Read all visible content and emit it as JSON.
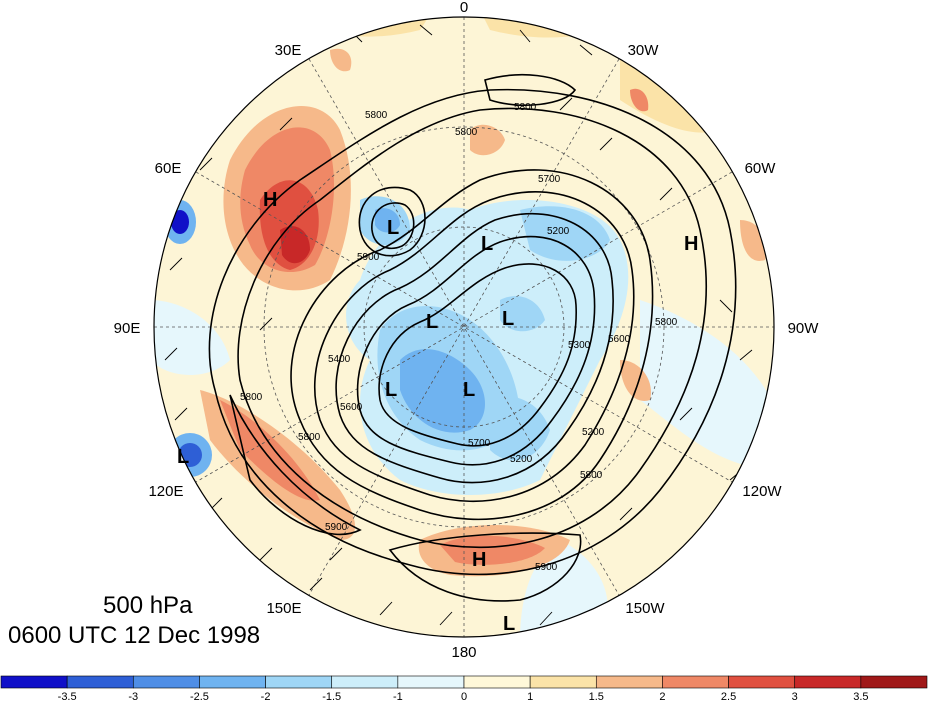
{
  "title": {
    "level": "500 hPa",
    "time": "0600 UTC 12 Dec 1998"
  },
  "longitude_labels": [
    "0",
    "30W",
    "60W",
    "90W",
    "120W",
    "150W",
    "180",
    "150E",
    "120E",
    "90E",
    "60E",
    "30E"
  ],
  "pressure_centers": [
    "H",
    "H",
    "H",
    "L",
    "L",
    "L",
    "L",
    "L",
    "L",
    "L",
    "L"
  ],
  "contour_labels": [
    "5800",
    "5800",
    "5700",
    "5200",
    "5300",
    "5600",
    "5800",
    "5200",
    "5700",
    "5200",
    "5400",
    "5600",
    "5900",
    "5800",
    "5900",
    "5800",
    "5900",
    "5800",
    "5800"
  ],
  "colorbar": {
    "tick_labels": [
      "-3.5",
      "-3",
      "-2.5",
      "-2",
      "-1.5",
      "-1",
      "0",
      "1",
      "1.5",
      "2",
      "2.5",
      "3",
      "3.5"
    ],
    "colors": [
      "#1010c8",
      "#2e5fd6",
      "#4f8ee6",
      "#6fb3f0",
      "#9fd6f6",
      "#cdeefa",
      "#e6f7fc",
      "#fff8d9",
      "#fbe3a8",
      "#f6b98a",
      "#ef8866",
      "#e05040",
      "#c82828",
      "#a01818"
    ]
  },
  "colors": {
    "positive_anomaly": "#e04a3c",
    "negative_anomaly": "#4f8ee6",
    "contour": "#000000"
  }
}
